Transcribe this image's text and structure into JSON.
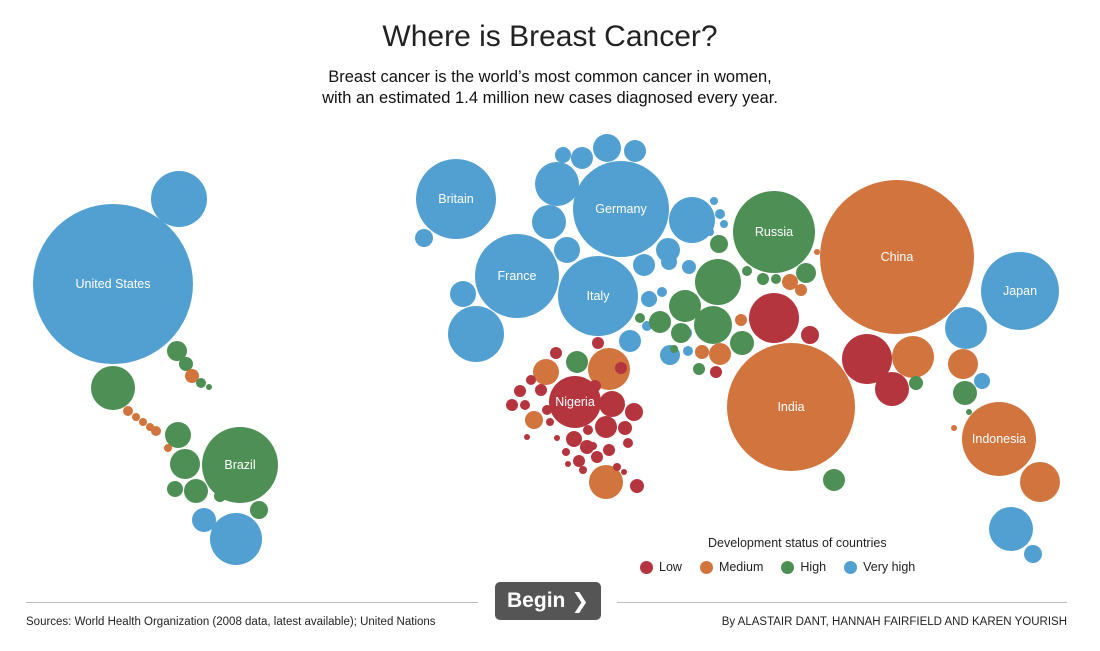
{
  "header": {
    "title": "Where is Breast Cancer?",
    "subtitle_line1": "Breast cancer is the world’s most common cancer in women,",
    "subtitle_line2": "with an estimated 1.4 million new cases diagnosed every year."
  },
  "chart_data": {
    "type": "bubble-map",
    "title": "Where is Breast Cancer?",
    "colors": {
      "low": "#b5353f",
      "medium": "#d1743d",
      "high": "#4d8f55",
      "very_high": "#52a0d1"
    },
    "legend": {
      "title": "Development status of countries",
      "placement": "bottom-right",
      "items": [
        {
          "key": "low",
          "label": "Low"
        },
        {
          "key": "medium",
          "label": "Medium"
        },
        {
          "key": "high",
          "label": "High"
        },
        {
          "key": "very_high",
          "label": "Very high"
        }
      ]
    },
    "labeled_countries": [
      {
        "name": "United States",
        "status": "very_high"
      },
      {
        "name": "Brazil",
        "status": "high"
      },
      {
        "name": "Britain",
        "status": "very_high"
      },
      {
        "name": "Germany",
        "status": "very_high"
      },
      {
        "name": "France",
        "status": "very_high"
      },
      {
        "name": "Italy",
        "status": "very_high"
      },
      {
        "name": "Russia",
        "status": "high"
      },
      {
        "name": "China",
        "status": "medium"
      },
      {
        "name": "Japan",
        "status": "very_high"
      },
      {
        "name": "India",
        "status": "medium"
      },
      {
        "name": "Nigeria",
        "status": "low"
      },
      {
        "name": "Indonesia",
        "status": "medium"
      }
    ]
  },
  "controls": {
    "begin_label": "Begin",
    "begin_chevron": "❯"
  },
  "footer": {
    "sources": "Sources: World Health Organization (2008 data, latest available); United Nations",
    "byline": "By ALASTAIR DANT, HANNAH FAIRFIELD AND KAREN YOURISH"
  }
}
